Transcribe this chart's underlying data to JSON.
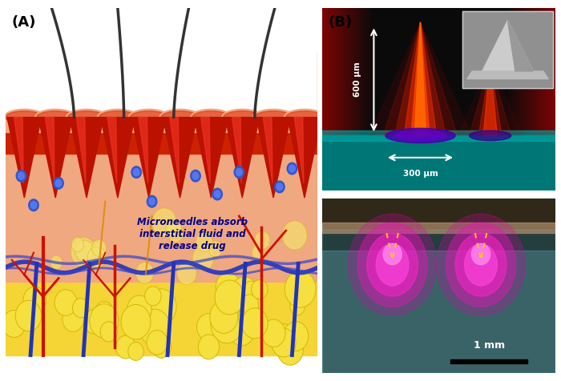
{
  "figure_width": 7.0,
  "figure_height": 4.76,
  "dpi": 100,
  "background_color": "#ffffff",
  "label_A": "(A)",
  "label_B": "(B)",
  "label_fontsize": 13,
  "label_fontweight": "bold",
  "annotation_text": "Microneedles absorb\ninterstitial fluid and\nrelease drug",
  "annotation_color": "#00008B",
  "annotation_fontsize": 8.5,
  "dim_600": "600 μm",
  "dim_300": "300 μm",
  "dim_1mm": "1 mm"
}
